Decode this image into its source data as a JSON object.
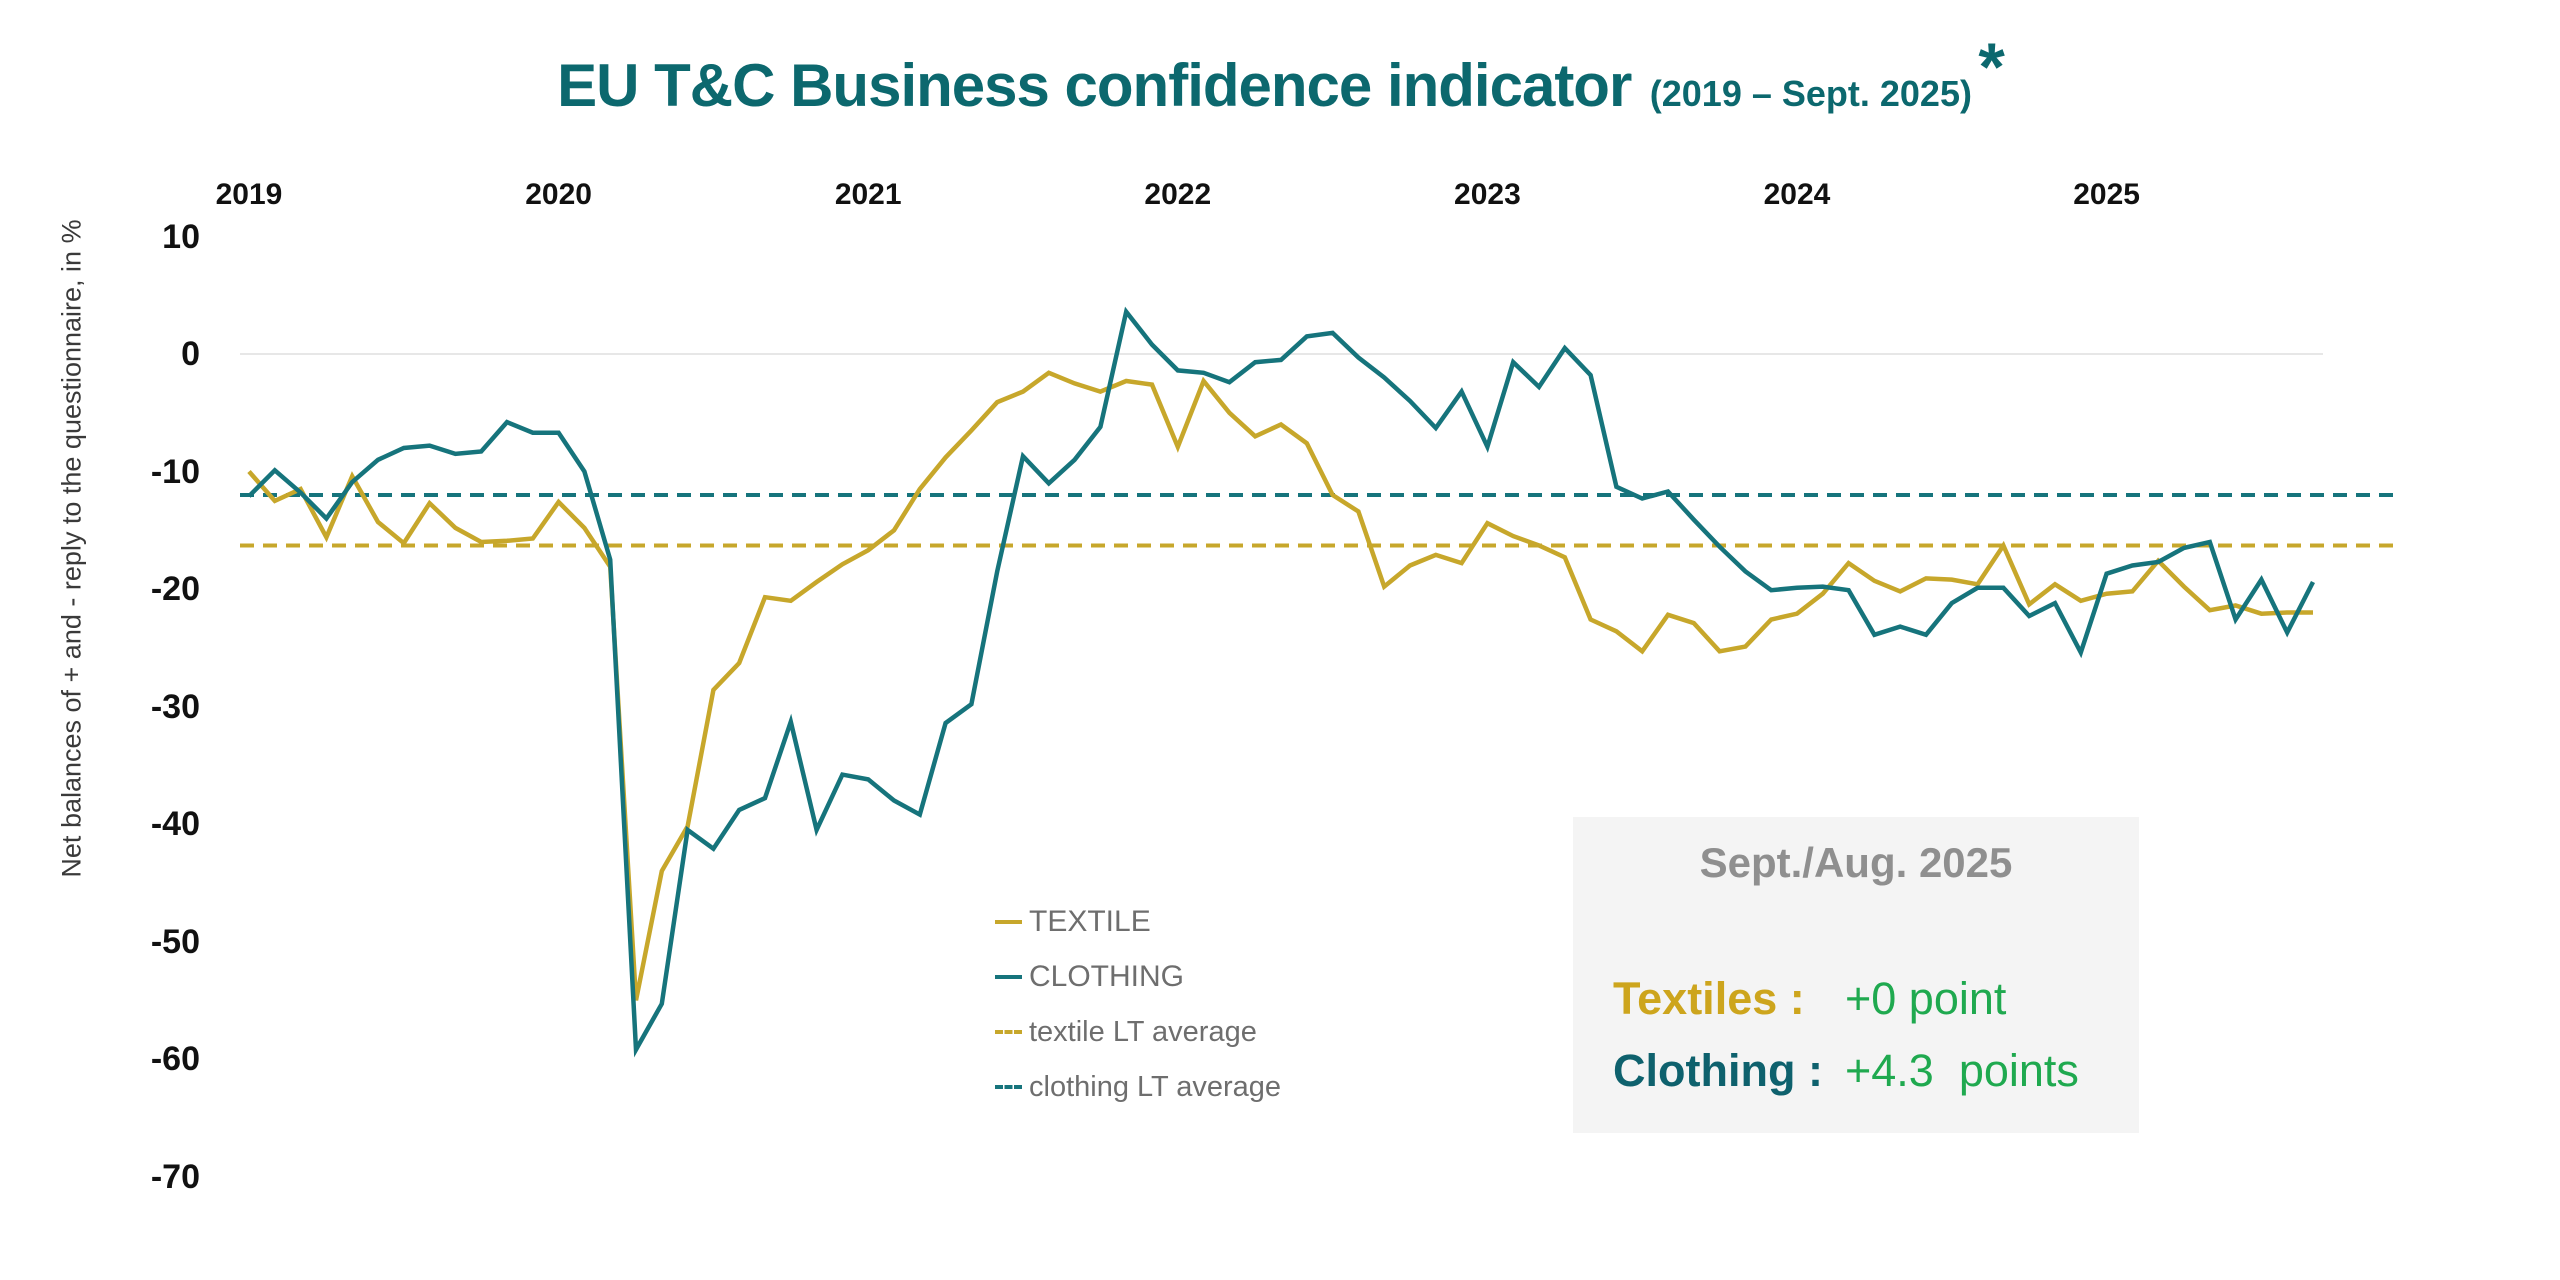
{
  "title": {
    "main": "EU T&C Business confidence indicator",
    "period": "(2019 – Sept. 2025)",
    "asterisk": "*"
  },
  "colors": {
    "textile": "#C7A72B",
    "clothing": "#16747C",
    "title_teal": "#0C686E",
    "green_value": "#1FA94F",
    "annotation_bg": "#F4F4F4",
    "annotation_title_gray": "#8F8F8F",
    "legend_text_gray": "#6E6E6E",
    "zero_gridline": "#E7E7E7"
  },
  "legend": {
    "items": [
      {
        "label": "TEXTILE",
        "style": "solid",
        "color": "#C7A72B"
      },
      {
        "label": "CLOTHING",
        "style": "solid",
        "color": "#16747C"
      },
      {
        "label": "textile LT average",
        "style": "dashed",
        "color": "#C7A72B"
      },
      {
        "label": "clothing LT average",
        "style": "dashed",
        "color": "#16747C"
      }
    ]
  },
  "annotation": {
    "title": "Sept./Aug. 2025",
    "rows": [
      {
        "label": "Textiles :",
        "value": "+0 point",
        "label_color": "#CDA51D",
        "value_color": "#1FA94F"
      },
      {
        "label": "Clothing :",
        "value": "+4.3  points",
        "label_color": "#0E616D",
        "value_color": "#1FA94F"
      }
    ]
  },
  "chart_data": {
    "type": "line",
    "title": "EU T&C Business confidence indicator (2019 – Sept. 2025)*",
    "ylabel": "Net balances of + and - reply to the questionnaire, in %",
    "xlabel": "",
    "x_tick_labels": [
      "2019",
      "2020",
      "2021",
      "2022",
      "2023",
      "2024",
      "2025"
    ],
    "y_tick_labels": [
      "10",
      "0",
      "-10",
      "-20",
      "-30",
      "-40",
      "-50",
      "-60",
      "-70"
    ],
    "y_ticks": [
      10,
      0,
      -10,
      -20,
      -30,
      -40,
      -50,
      -60,
      -70
    ],
    "ylim": [
      -70,
      10
    ],
    "x_start": "2019-01",
    "x_end": "2025-09",
    "x_frequency": "monthly",
    "gridlines": [
      0
    ],
    "legend_position": "center-bottom",
    "series": [
      {
        "name": "TEXTILE",
        "color": "#C7A72B",
        "values": [
          -10.0,
          -12.5,
          -11.5,
          -15.6,
          -10.4,
          -14.3,
          -16.1,
          -12.7,
          -14.8,
          -16.0,
          -15.9,
          -15.7,
          -12.6,
          -14.8,
          -18.1,
          -55.0,
          -44.0,
          -40.2,
          -28.6,
          -26.3,
          -20.7,
          -21.0,
          -19.4,
          -17.9,
          -16.7,
          -15.0,
          -11.5,
          -8.8,
          -6.5,
          -4.1,
          -3.2,
          -1.6,
          -2.5,
          -3.2,
          -2.3,
          -2.6,
          -7.9,
          -2.3,
          -5.0,
          -7.0,
          -6.0,
          -7.6,
          -12.0,
          -13.4,
          -19.8,
          -18.0,
          -17.1,
          -17.8,
          -14.4,
          -15.5,
          -16.3,
          -17.3,
          -22.6,
          -23.6,
          -25.3,
          -22.2,
          -22.9,
          -25.3,
          -24.9,
          -22.6,
          -22.1,
          -20.4,
          -17.8,
          -19.3,
          -20.2,
          -19.1,
          -19.2,
          -19.6,
          -16.3,
          -21.3,
          -19.6,
          -21.0,
          -20.4,
          -20.2,
          -17.6,
          -19.8,
          -21.8,
          -21.4,
          -22.1,
          -22.0,
          -22.0
        ]
      },
      {
        "name": "CLOTHING",
        "color": "#16747C",
        "values": [
          -12.1,
          -9.9,
          -11.8,
          -14.0,
          -10.9,
          -9.0,
          -8.0,
          -7.8,
          -8.5,
          -8.3,
          -5.8,
          -6.7,
          -6.7,
          -10.0,
          -17.5,
          -59.2,
          -55.3,
          -40.5,
          -42.1,
          -38.8,
          -37.8,
          -31.3,
          -40.5,
          -35.8,
          -36.2,
          -38.0,
          -39.2,
          -31.4,
          -29.8,
          -18.5,
          -8.7,
          -11.0,
          -9.0,
          -6.2,
          3.6,
          0.8,
          -1.4,
          -1.6,
          -2.4,
          -0.7,
          -0.5,
          1.5,
          1.8,
          -0.3,
          -2.0,
          -4.0,
          -6.3,
          -3.2,
          -7.9,
          -0.7,
          -2.8,
          0.5,
          -1.8,
          -11.3,
          -12.3,
          -11.7,
          -14.1,
          -16.4,
          -18.5,
          -20.1,
          -19.9,
          -19.8,
          -20.1,
          -23.9,
          -23.2,
          -23.9,
          -21.2,
          -19.9,
          -19.9,
          -22.3,
          -21.2,
          -25.4,
          -18.7,
          -18.0,
          -17.7,
          -16.5,
          -16.0,
          -22.6,
          -19.2,
          -23.7,
          -19.4
        ]
      }
    ],
    "reference_lines": [
      {
        "name": "textile LT average",
        "value": -16.3,
        "color": "#C7A72B",
        "style": "dashed"
      },
      {
        "name": "clothing LT average",
        "value": -12.0,
        "color": "#16747C",
        "style": "dashed"
      }
    ]
  }
}
